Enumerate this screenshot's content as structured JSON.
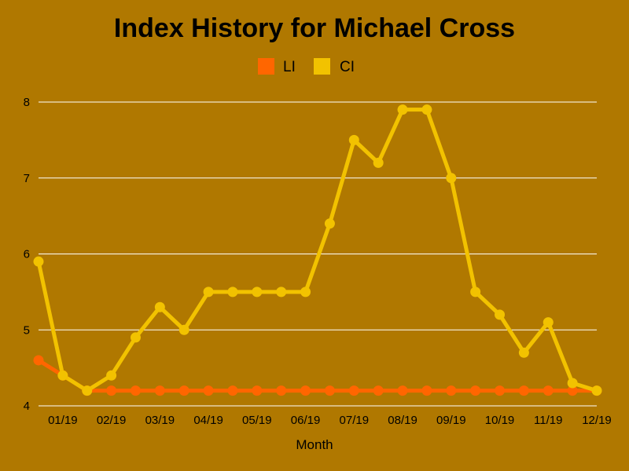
{
  "chart_data": {
    "type": "line",
    "title": "Index History for Michael Cross",
    "xlabel": "Month",
    "ylabel": "",
    "ylim": [
      4,
      8
    ],
    "yticks": [
      "4",
      "5",
      "6",
      "7",
      "8"
    ],
    "xticks": [
      "01/19",
      "02/19",
      "03/19",
      "04/19",
      "05/19",
      "06/19",
      "07/19",
      "08/19",
      "09/19",
      "10/19",
      "11/19",
      "12/19"
    ],
    "grid": true,
    "legend_position": "top-center",
    "series": [
      {
        "name": "LI",
        "color": "#ff6600",
        "values": [
          4.6,
          4.4,
          4.2,
          4.2,
          4.2,
          4.2,
          4.2,
          4.2,
          4.2,
          4.2,
          4.2,
          4.2,
          4.2,
          4.2,
          4.2,
          4.2,
          4.2,
          4.2,
          4.2,
          4.2,
          4.2,
          4.2,
          4.2,
          4.2
        ]
      },
      {
        "name": "CI",
        "color": "#f2c200",
        "values": [
          5.9,
          4.4,
          4.2,
          4.4,
          4.9,
          5.3,
          5.0,
          5.5,
          5.5,
          5.5,
          5.5,
          5.5,
          6.4,
          7.5,
          7.2,
          7.9,
          7.9,
          7.0,
          5.5,
          5.2,
          4.7,
          5.1,
          4.3,
          4.2
        ]
      }
    ]
  }
}
